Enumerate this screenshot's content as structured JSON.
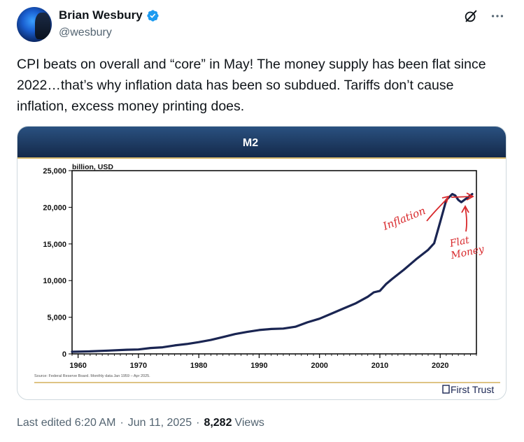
{
  "author": {
    "display_name": "Brian Wesbury",
    "handle": "@wesbury",
    "verified": true
  },
  "tweet": {
    "text": "CPI beats on overall and “core” in May!  The money supply has been flat since 2022…that’s why inflation data has been so subdued.  Tariffs don’t cause inflation, excess money printing does."
  },
  "meta": {
    "edited_label": "Last edited 6:20 AM",
    "date": "Jun 11, 2025",
    "separator": "·",
    "views_count": "8,282",
    "views_label": "Views"
  },
  "icons": {
    "grok": "grok-icon",
    "more": "more-icon",
    "verified": "verified-badge-icon"
  },
  "colors": {
    "banner_dark": "#14294a",
    "banner_mid": "#2a5180",
    "line": "#1a2552",
    "annotation": "#d8282b",
    "gold_rule": "#c9a13a",
    "verified": "#1d9bf0"
  },
  "chart_data": {
    "type": "line",
    "title": "M2",
    "ylabel": "billion, USD",
    "xlabel": "",
    "x_ticks": [
      "1960",
      "1970",
      "1980",
      "1990",
      "2000",
      "2010",
      "2020"
    ],
    "y_ticks": [
      "0",
      "5,000",
      "10,000",
      "15,000",
      "20,000",
      "25,000"
    ],
    "xlim": [
      1959,
      2026
    ],
    "ylim": [
      0,
      25000
    ],
    "series": [
      {
        "name": "M2",
        "x": [
          1959,
          1962,
          1965,
          1968,
          1970,
          1972,
          1974,
          1976,
          1978,
          1980,
          1982,
          1984,
          1986,
          1988,
          1990,
          1992,
          1994,
          1996,
          1998,
          2000,
          2002,
          2004,
          2006,
          2008,
          2009,
          2010,
          2011,
          2012,
          2014,
          2016,
          2018,
          2019,
          2020,
          2020.5,
          2021,
          2022,
          2022.5,
          2023,
          2023.5,
          2024,
          2025,
          2025.3
        ],
        "values": [
          290,
          340,
          450,
          560,
          600,
          800,
          900,
          1150,
          1350,
          1600,
          1900,
          2300,
          2700,
          3000,
          3250,
          3400,
          3450,
          3700,
          4300,
          4800,
          5500,
          6200,
          6900,
          7800,
          8400,
          8600,
          9500,
          10200,
          11500,
          12900,
          14200,
          15100,
          18000,
          19500,
          21000,
          21800,
          21600,
          21000,
          20700,
          21000,
          21600,
          21800
        ]
      }
    ],
    "source": "Source: Federal Reserve Board.  Monthly data Jan 1959 – Apr 2025.",
    "brand": "First Trust",
    "annotations": [
      "Inflation",
      "Flat Money"
    ]
  }
}
